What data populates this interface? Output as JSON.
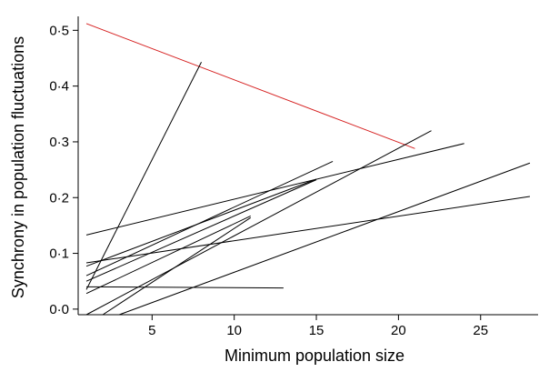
{
  "chart_data": {
    "type": "line",
    "xlabel": "Minimum population size",
    "ylabel": "Synchrony in population fluctuations",
    "xlim": [
      0.5,
      28.5
    ],
    "ylim": [
      -0.01,
      0.525
    ],
    "x_ticks": [
      5,
      10,
      15,
      20,
      25
    ],
    "y_ticks": [
      {
        "value": 0.0,
        "label": "0·0"
      },
      {
        "value": 0.1,
        "label": "0·1"
      },
      {
        "value": 0.2,
        "label": "0·2"
      },
      {
        "value": 0.3,
        "label": "0·3"
      },
      {
        "value": 0.4,
        "label": "0·4"
      },
      {
        "value": 0.5,
        "label": "0·5"
      }
    ],
    "grid": false,
    "legend": "none",
    "series": [
      {
        "color": "#d62020",
        "x": [
          1,
          21
        ],
        "y": [
          0.512,
          0.288
        ]
      },
      {
        "color": "#000000",
        "x": [
          1,
          8
        ],
        "y": [
          0.035,
          0.443
        ]
      },
      {
        "color": "#000000",
        "x": [
          1,
          24
        ],
        "y": [
          0.133,
          0.297
        ]
      },
      {
        "color": "#000000",
        "x": [
          1,
          16
        ],
        "y": [
          0.06,
          0.265
        ]
      },
      {
        "color": "#000000",
        "x": [
          1,
          15
        ],
        "y": [
          0.05,
          0.232
        ]
      },
      {
        "color": "#000000",
        "x": [
          1,
          11
        ],
        "y": [
          0.028,
          0.167
        ]
      },
      {
        "color": "#000000",
        "x": [
          1,
          28
        ],
        "y": [
          0.083,
          0.202
        ]
      },
      {
        "color": "#000000",
        "x": [
          1,
          13
        ],
        "y": [
          0.04,
          0.038
        ]
      },
      {
        "color": "#000000",
        "x": [
          1,
          22
        ],
        "y": [
          -0.01,
          0.32
        ]
      },
      {
        "color": "#000000",
        "x": [
          2,
          11
        ],
        "y": [
          -0.01,
          0.164
        ]
      },
      {
        "color": "#000000",
        "x": [
          3,
          28
        ],
        "y": [
          -0.01,
          0.262
        ]
      },
      {
        "color": "#000000",
        "x": [
          1,
          15
        ],
        "y": [
          0.077,
          0.233
        ]
      }
    ]
  }
}
